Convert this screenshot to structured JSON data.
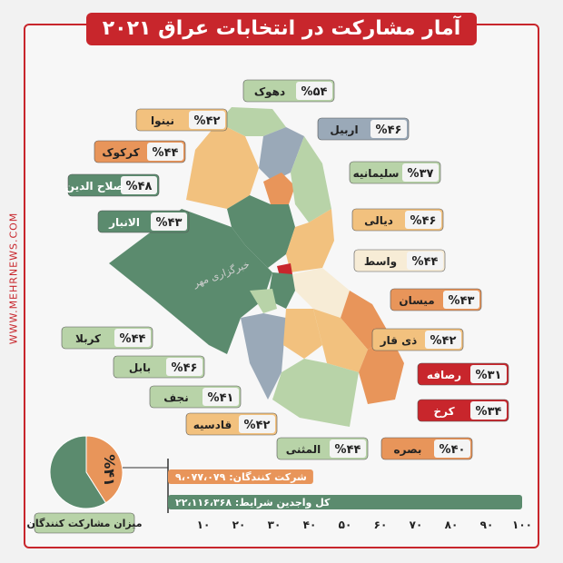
{
  "title": "آمار مشارکت در انتخابات عراق ۲۰۲۱",
  "site": "WWW.MEHRNEWS.COM",
  "watermark": "خبرگزاری مهر",
  "colors": {
    "accent": "#c8262c",
    "green": "#5b8b6e",
    "orange": "#e8955a",
    "light_orange": "#f2c17e",
    "pale": "#f7ecd6",
    "grey_blue": "#9aa9b8",
    "pale_green": "#b8d3a8"
  },
  "chart_data": [
    {
      "type": "map",
      "title": "آمار مشارکت در انتخابات عراق ۲۰۲۱",
      "regions": [
        {
          "name": "دهوک",
          "pct_label": "%۵۴",
          "value": 54
        },
        {
          "name": "نینوا",
          "pct_label": "%۴۲",
          "value": 42
        },
        {
          "name": "اربیل",
          "pct_label": "%۴۶",
          "value": 46
        },
        {
          "name": "کرکوک",
          "pct_label": "%۴۴",
          "value": 44
        },
        {
          "name": "سلیمانیه",
          "pct_label": "%۳۷",
          "value": 37
        },
        {
          "name": "صلاح الدین",
          "pct_label": "%۴۸",
          "value": 48
        },
        {
          "name": "الانبار",
          "pct_label": "%۴۳",
          "value": 43
        },
        {
          "name": "دیالی",
          "pct_label": "%۴۶",
          "value": 46
        },
        {
          "name": "واسط",
          "pct_label": "%۴۴",
          "value": 44
        },
        {
          "name": "میسان",
          "pct_label": "%۴۳",
          "value": 43
        },
        {
          "name": "کربلا",
          "pct_label": "%۴۴",
          "value": 44
        },
        {
          "name": "ذی قار",
          "pct_label": "%۴۲",
          "value": 42
        },
        {
          "name": "بابل",
          "pct_label": "%۴۶",
          "value": 46
        },
        {
          "name": "رصافه",
          "pct_label": "%۳۱",
          "value": 31
        },
        {
          "name": "نجف",
          "pct_label": "%۴۱",
          "value": 41
        },
        {
          "name": "کرخ",
          "pct_label": "%۳۴",
          "value": 34
        },
        {
          "name": "قادسیه",
          "pct_label": "%۴۲",
          "value": 42
        },
        {
          "name": "المثنی",
          "pct_label": "%۴۴",
          "value": 44
        },
        {
          "name": "بصره",
          "pct_label": "%۴۰",
          "value": 40
        }
      ]
    },
    {
      "type": "pie",
      "title": "میزان مشارکت کنندگان",
      "label": "%۴۱",
      "values": [
        41,
        59
      ]
    },
    {
      "type": "bar",
      "bars": [
        {
          "label": "شرکت کنندگان: ۹،۰۷۷،۰۷۹",
          "value": 41
        },
        {
          "label": "کل واجدین شرایط: ۲۲،۱۱۶،۳۶۸",
          "value": 100
        }
      ],
      "ticks": [
        "۱۰",
        "۲۰",
        "۳۰",
        "۴۰",
        "۵۰",
        "۶۰",
        "۷۰",
        "۸۰",
        "۹۰",
        "۱۰۰"
      ],
      "xlim": [
        0,
        100
      ]
    }
  ]
}
